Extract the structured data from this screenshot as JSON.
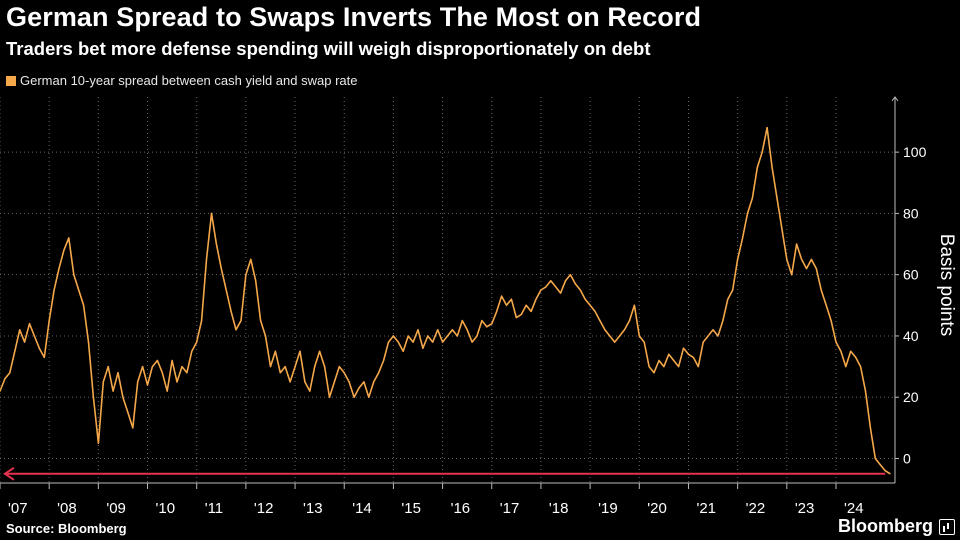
{
  "title": "German Spread to Swaps Inverts The Most on Record",
  "subtitle": "Traders bet more defense spending will weigh disproportionately on debt",
  "source": "Source: Bloomberg",
  "brand": "Bloomberg",
  "colors": {
    "background": "#000000",
    "line": "#f5a84a",
    "arrow": "#e5334f",
    "grid": "#666666",
    "text": "#ffffff"
  },
  "chart_data": {
    "type": "line",
    "title": "German Spread to Swaps Inverts The Most on Record",
    "subtitle": "Traders bet more defense spending will weigh disproportionately on debt",
    "xlabel": "",
    "ylabel": "Basis points",
    "ylim": [
      -8,
      118
    ],
    "xlim": [
      2007.0,
      2025.2
    ],
    "x_ticks": [
      2007,
      2008,
      2009,
      2010,
      2011,
      2012,
      2013,
      2014,
      2015,
      2016,
      2017,
      2018,
      2019,
      2020,
      2021,
      2022,
      2023,
      2024
    ],
    "x_tick_labels": [
      "'07",
      "'08",
      "'09",
      "'10",
      "'11",
      "'12",
      "'13",
      "'14",
      "'15",
      "'16",
      "'17",
      "'18",
      "'19",
      "'20",
      "'21",
      "'22",
      "'23",
      "'24"
    ],
    "y_ticks": [
      0,
      20,
      40,
      60,
      80,
      100
    ],
    "y_tick_labels": [
      "0",
      "20",
      "40",
      "60",
      "80",
      "100"
    ],
    "grid": true,
    "legend_position": "top-left",
    "annotations": [
      {
        "type": "arrow",
        "direction": "left",
        "y": -5,
        "x_from": 2025.0,
        "x_to": 2007.1
      }
    ],
    "series": [
      {
        "name": "German 10-year spread between cash yield and swap rate",
        "color": "#f5a84a",
        "x": [
          2007.0,
          2007.1,
          2007.2,
          2007.3,
          2007.4,
          2007.5,
          2007.6,
          2007.7,
          2007.8,
          2007.9,
          2008.0,
          2008.1,
          2008.2,
          2008.3,
          2008.4,
          2008.5,
          2008.6,
          2008.7,
          2008.8,
          2008.9,
          2009.0,
          2009.1,
          2009.2,
          2009.3,
          2009.4,
          2009.5,
          2009.6,
          2009.7,
          2009.8,
          2009.9,
          2010.0,
          2010.1,
          2010.2,
          2010.3,
          2010.4,
          2010.5,
          2010.6,
          2010.7,
          2010.8,
          2010.9,
          2011.0,
          2011.1,
          2011.2,
          2011.3,
          2011.4,
          2011.5,
          2011.6,
          2011.7,
          2011.8,
          2011.9,
          2012.0,
          2012.1,
          2012.2,
          2012.3,
          2012.4,
          2012.5,
          2012.6,
          2012.7,
          2012.8,
          2012.9,
          2013.0,
          2013.1,
          2013.2,
          2013.3,
          2013.4,
          2013.5,
          2013.6,
          2013.7,
          2013.8,
          2013.9,
          2014.0,
          2014.1,
          2014.2,
          2014.3,
          2014.4,
          2014.5,
          2014.6,
          2014.7,
          2014.8,
          2014.9,
          2015.0,
          2015.1,
          2015.2,
          2015.3,
          2015.4,
          2015.5,
          2015.6,
          2015.7,
          2015.8,
          2015.9,
          2016.0,
          2016.1,
          2016.2,
          2016.3,
          2016.4,
          2016.5,
          2016.6,
          2016.7,
          2016.8,
          2016.9,
          2017.0,
          2017.1,
          2017.2,
          2017.3,
          2017.4,
          2017.5,
          2017.6,
          2017.7,
          2017.8,
          2017.9,
          2018.0,
          2018.1,
          2018.2,
          2018.3,
          2018.4,
          2018.5,
          2018.6,
          2018.7,
          2018.8,
          2018.9,
          2019.0,
          2019.1,
          2019.2,
          2019.3,
          2019.4,
          2019.5,
          2019.6,
          2019.7,
          2019.8,
          2019.9,
          2020.0,
          2020.1,
          2020.2,
          2020.3,
          2020.4,
          2020.5,
          2020.6,
          2020.7,
          2020.8,
          2020.9,
          2021.0,
          2021.1,
          2021.2,
          2021.3,
          2021.4,
          2021.5,
          2021.6,
          2021.7,
          2021.8,
          2021.9,
          2022.0,
          2022.1,
          2022.2,
          2022.3,
          2022.4,
          2022.5,
          2022.6,
          2022.7,
          2022.8,
          2022.9,
          2023.0,
          2023.1,
          2023.2,
          2023.3,
          2023.4,
          2023.5,
          2023.6,
          2023.7,
          2023.8,
          2023.9,
          2024.0,
          2024.1,
          2024.2,
          2024.3,
          2024.4,
          2024.5,
          2024.6,
          2024.7,
          2024.8,
          2024.9,
          2025.0,
          2025.1
        ],
        "values": [
          22,
          26,
          28,
          35,
          42,
          38,
          44,
          40,
          36,
          33,
          45,
          55,
          62,
          68,
          72,
          60,
          55,
          50,
          38,
          20,
          5,
          25,
          30,
          22,
          28,
          20,
          15,
          10,
          25,
          30,
          24,
          30,
          32,
          28,
          22,
          32,
          25,
          30,
          28,
          35,
          38,
          45,
          65,
          80,
          70,
          62,
          55,
          48,
          42,
          45,
          60,
          65,
          58,
          45,
          40,
          30,
          35,
          28,
          30,
          25,
          30,
          35,
          25,
          22,
          30,
          35,
          30,
          20,
          25,
          30,
          28,
          25,
          20,
          23,
          25,
          20,
          25,
          28,
          32,
          38,
          40,
          38,
          35,
          40,
          38,
          42,
          36,
          40,
          38,
          42,
          38,
          40,
          42,
          40,
          45,
          42,
          38,
          40,
          45,
          43,
          44,
          48,
          53,
          50,
          52,
          46,
          47,
          50,
          48,
          52,
          55,
          56,
          58,
          56,
          54,
          58,
          60,
          57,
          55,
          52,
          50,
          48,
          45,
          42,
          40,
          38,
          40,
          42,
          45,
          50,
          40,
          38,
          30,
          28,
          32,
          30,
          34,
          32,
          30,
          36,
          34,
          33,
          30,
          38,
          40,
          42,
          40,
          45,
          52,
          55,
          65,
          72,
          80,
          85,
          95,
          100,
          108,
          95,
          85,
          75,
          65,
          60,
          70,
          65,
          62,
          65,
          62,
          55,
          50,
          45,
          38,
          35,
          30,
          35,
          33,
          30,
          22,
          10,
          0,
          -2,
          -4,
          -5
        ]
      }
    ]
  }
}
